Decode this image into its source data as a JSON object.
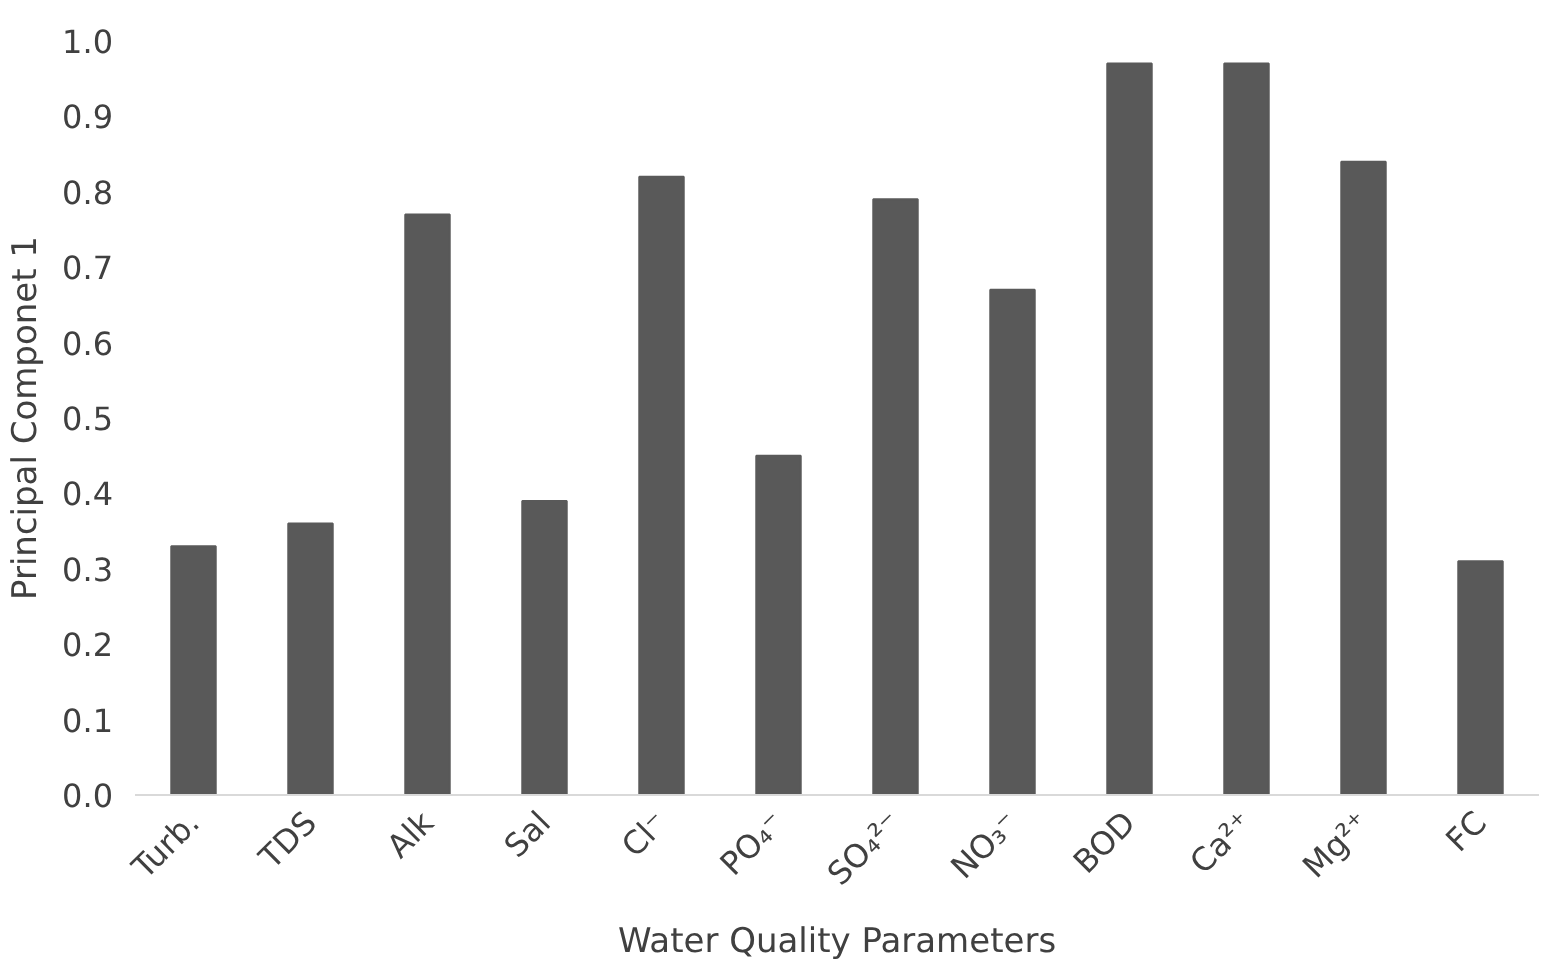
{
  "chart_data": {
    "type": "bar",
    "xlabel": "Water Quality Parameters",
    "ylabel": "Principal Componet 1",
    "categories": [
      "Turb.",
      "TDS",
      "Alk",
      "Sal",
      "Cl⁻",
      "PO₄⁻",
      "SO₄²⁻",
      "NO₃⁻",
      "BOD",
      "Ca²⁺",
      "Mg²⁺",
      "FC"
    ],
    "values": [
      0.33,
      0.36,
      0.77,
      0.39,
      0.82,
      0.45,
      0.79,
      0.67,
      0.97,
      0.97,
      0.84,
      0.31
    ],
    "color": "#595959",
    "ylim": [
      0,
      1.0
    ],
    "yticks": [
      {
        "value": 0,
        "label": "0.0"
      },
      {
        "value": 0.1,
        "label": "0.1"
      },
      {
        "value": 0.2,
        "label": "0.2"
      },
      {
        "value": 0.3,
        "label": "0.3"
      },
      {
        "value": 0.4,
        "label": "0.4"
      },
      {
        "value": 0.5,
        "label": "0.5"
      },
      {
        "value": 0.6,
        "label": "0.6"
      },
      {
        "value": 0.7,
        "label": "0.7"
      },
      {
        "value": 0.8,
        "label": "0.8"
      },
      {
        "value": 0.9,
        "label": "0.9"
      },
      {
        "value": 1.0,
        "label": "1.0"
      }
    ],
    "grid": false
  }
}
